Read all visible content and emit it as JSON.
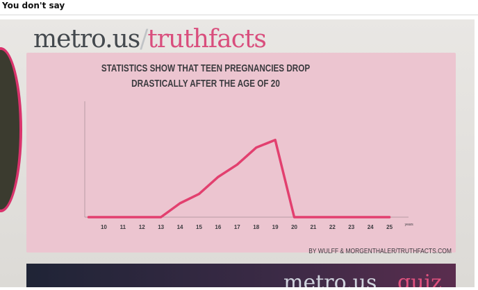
{
  "post": {
    "title": "You don't say"
  },
  "photo": {
    "brand": {
      "part1": "metro.us",
      "slash": "/",
      "part2": "truthfacts"
    },
    "bottom_brand": {
      "part1": "metro.us",
      "part2": "quiz"
    }
  },
  "chart_data": {
    "type": "line",
    "title_line1": "STATISTICS SHOW THAT TEEN PREGNANCIES DROP",
    "title_line2": "DRASTICALLY AFTER THE AGE OF 20",
    "xlabel": "years",
    "ylabel": "",
    "categories": [
      "10",
      "11",
      "12",
      "13",
      "14",
      "15",
      "16",
      "17",
      "18",
      "19",
      "20",
      "21",
      "22",
      "23",
      "24",
      "25"
    ],
    "x": [
      9.2,
      10,
      11,
      12,
      13,
      14,
      15,
      16,
      17,
      18,
      19,
      20,
      21,
      22,
      23,
      24,
      25
    ],
    "values": [
      0,
      0,
      0,
      0,
      0,
      9,
      15,
      26,
      34,
      45,
      50,
      0,
      0,
      0,
      0,
      0,
      0
    ],
    "ylim": [
      0,
      75
    ],
    "xlim": [
      9,
      26
    ],
    "grid": false,
    "line_color": "#e2406f",
    "credit": "BY WULFF & MORGENTHALER/TRUTHFACTS.COM"
  }
}
